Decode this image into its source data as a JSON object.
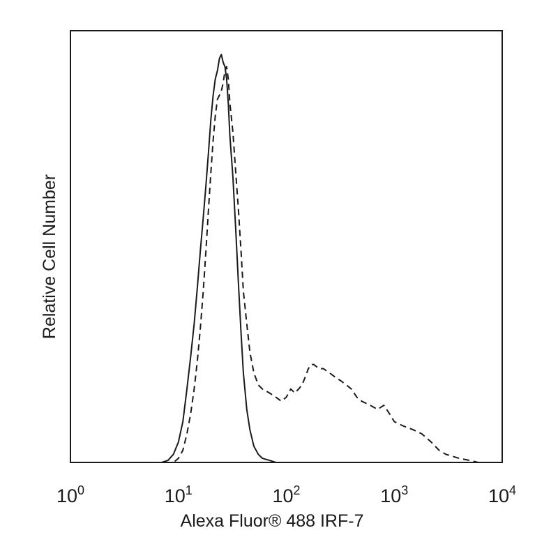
{
  "chart_data": {
    "type": "line",
    "xlabel": "Alexa Fluor® 488 IRF-7",
    "ylabel": "Relative Cell Number",
    "x_scale": "log",
    "xlim": [
      1,
      10000
    ],
    "ylim": [
      0,
      100
    ],
    "x_ticks": [
      {
        "base": "10",
        "exp": "0"
      },
      {
        "base": "10",
        "exp": "1"
      },
      {
        "base": "10",
        "exp": "2"
      },
      {
        "base": "10",
        "exp": "3"
      },
      {
        "base": "10",
        "exp": "4"
      }
    ],
    "grid": false,
    "legend": "none",
    "series": [
      {
        "style": "solid",
        "color": "#1a1a1a",
        "x": [
          1,
          7,
          8,
          9,
          10,
          11,
          12,
          13,
          14,
          15,
          16,
          17,
          18,
          19,
          20,
          21,
          22,
          23,
          24,
          25,
          26,
          27,
          28,
          29,
          30,
          32,
          34,
          36,
          38,
          40,
          43,
          46,
          50,
          55,
          60,
          70,
          80,
          10000
        ],
        "y": [
          0,
          0,
          0.5,
          2,
          5,
          10,
          18,
          26,
          34,
          43,
          52,
          60,
          68,
          76,
          84,
          90,
          94,
          96,
          99,
          100,
          98,
          97,
          94,
          88,
          80,
          70,
          57,
          44,
          32,
          22,
          13,
          8,
          4,
          2,
          1,
          0.5,
          0,
          0
        ]
      },
      {
        "style": "dashed",
        "color": "#1a1a1a",
        "x": [
          1,
          9,
          10,
          11,
          12,
          13,
          14,
          15,
          16,
          17,
          18,
          19,
          20,
          21,
          22,
          23,
          24,
          25,
          26,
          27,
          28,
          29,
          30,
          32,
          34,
          36,
          38,
          40,
          43,
          46,
          50,
          55,
          60,
          70,
          80,
          90,
          100,
          110,
          120,
          130,
          140,
          150,
          160,
          170,
          180,
          200,
          220,
          250,
          280,
          320,
          360,
          400,
          450,
          500,
          600,
          700,
          800,
          900,
          1000,
          1200,
          1500,
          1800,
          2200,
          2600,
          3000,
          4000,
          5000,
          6000,
          10000
        ],
        "y": [
          0,
          0,
          1,
          3,
          7,
          12,
          18,
          25,
          33,
          42,
          52,
          62,
          71,
          79,
          85,
          89,
          90,
          91,
          93,
          96,
          97,
          94,
          88,
          81,
          71,
          62,
          52,
          42,
          34,
          27,
          22,
          19,
          18,
          17,
          16,
          15,
          16,
          18,
          17,
          18,
          19,
          21,
          23,
          24,
          24,
          23,
          23,
          22,
          21,
          20,
          19,
          18,
          16,
          15,
          14,
          13,
          14,
          12,
          10,
          9,
          8,
          7,
          5,
          3,
          2,
          1,
          0.5,
          0,
          0
        ]
      }
    ]
  }
}
